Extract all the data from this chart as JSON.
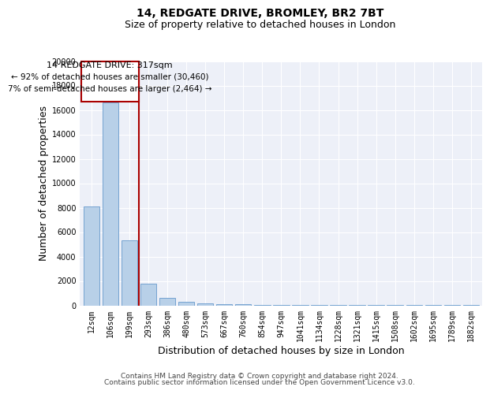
{
  "title": "14, REDGATE DRIVE, BROMLEY, BR2 7BT",
  "subtitle": "Size of property relative to detached houses in London",
  "xlabel": "Distribution of detached houses by size in London",
  "ylabel": "Number of detached properties",
  "categories": [
    "12sqm",
    "106sqm",
    "199sqm",
    "293sqm",
    "386sqm",
    "480sqm",
    "573sqm",
    "667sqm",
    "760sqm",
    "854sqm",
    "947sqm",
    "1041sqm",
    "1134sqm",
    "1228sqm",
    "1321sqm",
    "1415sqm",
    "1508sqm",
    "1602sqm",
    "1695sqm",
    "1789sqm",
    "1882sqm"
  ],
  "values": [
    8100,
    16600,
    5300,
    1800,
    600,
    300,
    150,
    100,
    80,
    60,
    40,
    30,
    20,
    15,
    10,
    8,
    6,
    5,
    4,
    3,
    2
  ],
  "bar_color": "#b8d0e8",
  "bar_edge_color": "#6699cc",
  "property_line_color": "#aa0000",
  "annotation_title": "14 REDGATE DRIVE: 317sqm",
  "annotation_line1": "← 92% of detached houses are smaller (30,460)",
  "annotation_line2": "7% of semi-detached houses are larger (2,464) →",
  "annotation_box_color": "#aa0000",
  "ylim": [
    0,
    20000
  ],
  "yticks": [
    0,
    2000,
    4000,
    6000,
    8000,
    10000,
    12000,
    14000,
    16000,
    18000,
    20000
  ],
  "background_color": "#edf0f8",
  "footer_line1": "Contains HM Land Registry data © Crown copyright and database right 2024.",
  "footer_line2": "Contains public sector information licensed under the Open Government Licence v3.0.",
  "title_fontsize": 10,
  "subtitle_fontsize": 9,
  "axis_label_fontsize": 9,
  "tick_fontsize": 7,
  "annotation_fontsize": 8,
  "footer_fontsize": 6.5
}
